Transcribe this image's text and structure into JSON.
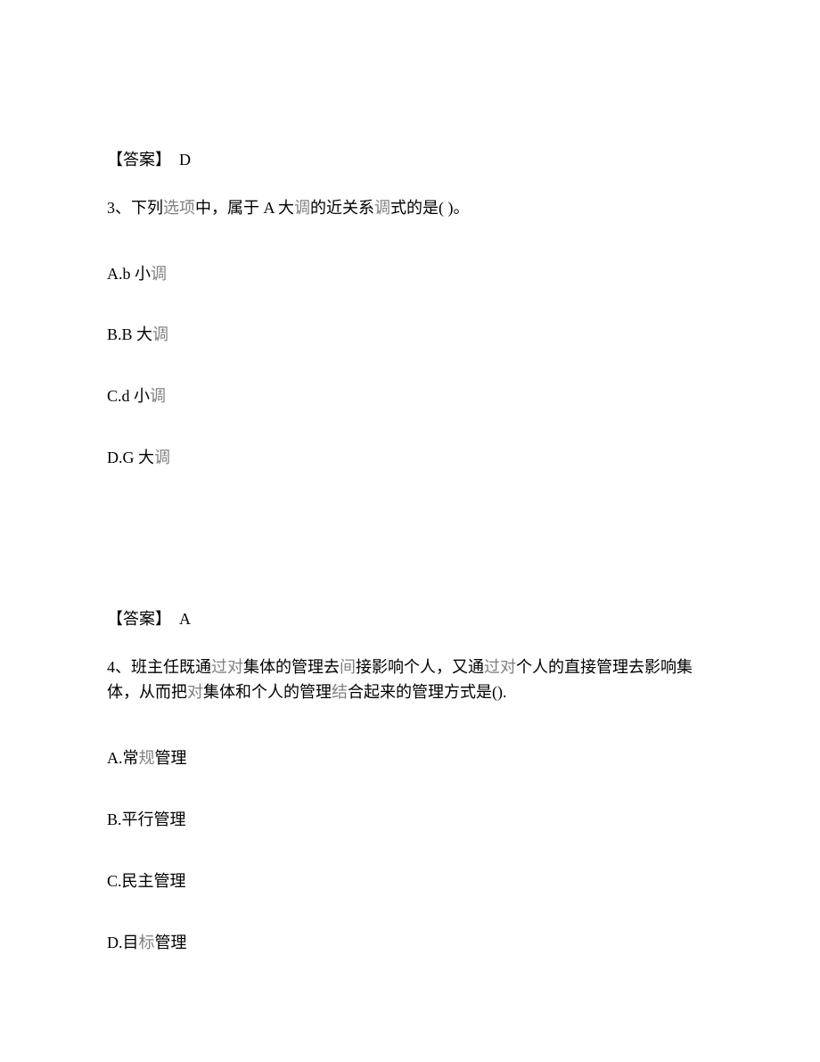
{
  "answer_2": {
    "label": "【答案】",
    "value": "D"
  },
  "question_3": {
    "number": "3、",
    "prefix": "下列",
    "gray1": "选项",
    "mid1": "中，属于 A 大",
    "gray2": "调",
    "mid2": "的近关系",
    "gray3": "调",
    "suffix": "式的是(        )。",
    "options": {
      "a": {
        "prefix": "A.b 小",
        "suffix": "调"
      },
      "b": {
        "prefix": "B.B 大",
        "suffix": "调"
      },
      "c": {
        "prefix": "C.d 小",
        "suffix": "调"
      },
      "d": {
        "prefix": "D.G 大",
        "suffix": "调"
      }
    }
  },
  "answer_3": {
    "label": "【答案】",
    "value": "A"
  },
  "question_4": {
    "number": "4、",
    "part1": "班主任既通",
    "gray1": "过对",
    "part2": "集体的管理去",
    "gray2": "间",
    "part3": "接影响个人，又通",
    "gray3": "过对",
    "part4": "个人的直接管理去影响集体，从而把",
    "gray4": "对",
    "part5": "集体和个人的管理",
    "gray5": "结",
    "part6": "合起来的管理方式是().",
    "options": {
      "a": {
        "prefix": "A.常",
        "gray": "规",
        "suffix": "管理"
      },
      "b": {
        "text": "B.平行管理"
      },
      "c": {
        "text": "C.民主管理"
      },
      "d": {
        "prefix": "D.目",
        "gray": "标",
        "suffix": "管理"
      }
    }
  }
}
